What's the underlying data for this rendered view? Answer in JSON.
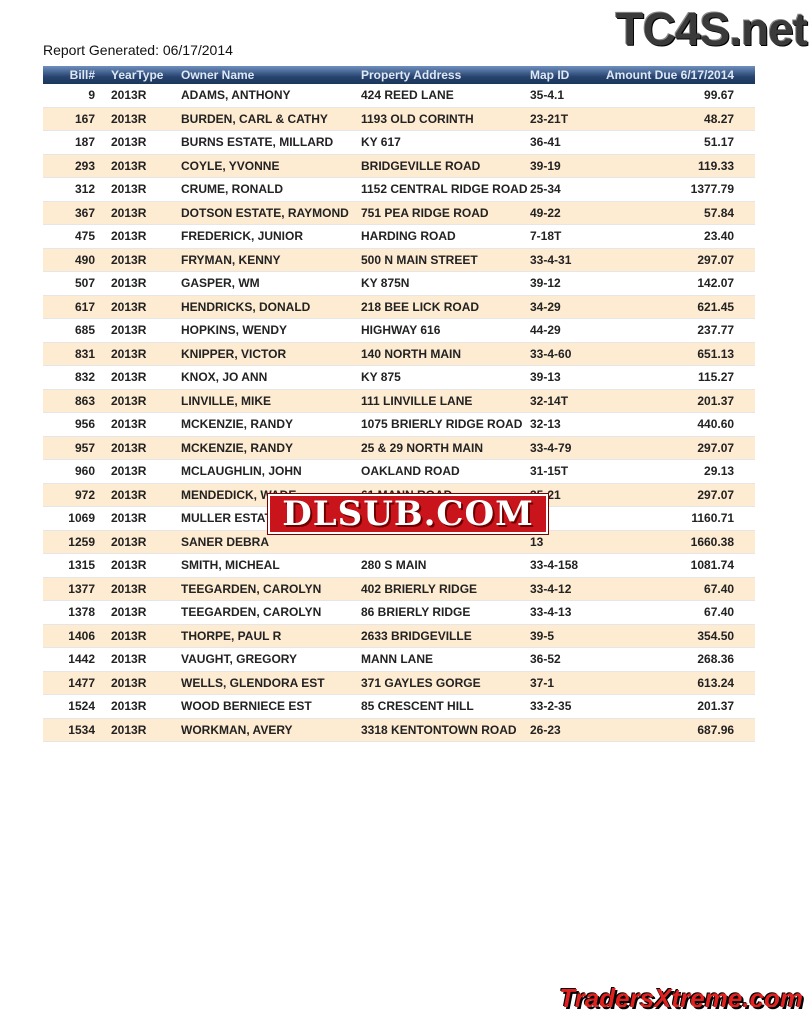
{
  "report_generated": "Report Generated: 06/17/2014",
  "logos": {
    "top": "TC4S.net",
    "middle": "DLSUB.COM",
    "bottom": "TradersXtreme.com"
  },
  "columns": [
    "Bill#",
    "YearType",
    "Owner Name",
    "Property Address",
    "Map ID",
    "Amount Due  6/17/2014"
  ],
  "rows": [
    [
      "9",
      "2013R",
      "ADAMS, ANTHONY",
      "424 REED LANE",
      "35-4.1",
      "99.67"
    ],
    [
      "167",
      "2013R",
      "BURDEN, CARL & CATHY",
      "1193 OLD CORINTH",
      "23-21T",
      "48.27"
    ],
    [
      "187",
      "2013R",
      "BURNS ESTATE, MILLARD",
      "KY 617",
      "36-41",
      "51.17"
    ],
    [
      "293",
      "2013R",
      "COYLE, YVONNE",
      "BRIDGEVILLE ROAD",
      "39-19",
      "119.33"
    ],
    [
      "312",
      "2013R",
      "CRUME, RONALD",
      "1152 CENTRAL RIDGE ROAD",
      "25-34",
      "1377.79"
    ],
    [
      "367",
      "2013R",
      "DOTSON ESTATE, RAYMOND",
      "751 PEA RIDGE ROAD",
      "49-22",
      "57.84"
    ],
    [
      "475",
      "2013R",
      "FREDERICK, JUNIOR",
      "HARDING ROAD",
      "7-18T",
      "23.40"
    ],
    [
      "490",
      "2013R",
      "FRYMAN, KENNY",
      "500 N MAIN STREET",
      "33-4-31",
      "297.07"
    ],
    [
      "507",
      "2013R",
      "GASPER, WM",
      "KY 875N",
      "39-12",
      "142.07"
    ],
    [
      "617",
      "2013R",
      "HENDRICKS, DONALD",
      "218 BEE LICK ROAD",
      "34-29",
      "621.45"
    ],
    [
      "685",
      "2013R",
      "HOPKINS, WENDY",
      "HIGHWAY 616",
      "44-29",
      "237.77"
    ],
    [
      "831",
      "2013R",
      "KNIPPER, VICTOR",
      "140 NORTH MAIN",
      "33-4-60",
      "651.13"
    ],
    [
      "832",
      "2013R",
      "KNOX, JO ANN",
      "KY 875",
      "39-13",
      "115.27"
    ],
    [
      "863",
      "2013R",
      "LINVILLE, MIKE",
      "111 LINVILLE LANE",
      "32-14T",
      "201.37"
    ],
    [
      "956",
      "2013R",
      "MCKENZIE, RANDY",
      "1075 BRIERLY RIDGE ROAD",
      "32-13",
      "440.60"
    ],
    [
      "957",
      "2013R",
      "MCKENZIE, RANDY",
      "25 & 29 NORTH MAIN",
      "33-4-79",
      "297.07"
    ],
    [
      "960",
      "2013R",
      "MCLAUGHLIN, JOHN",
      "OAKLAND ROAD",
      "31-15T",
      "29.13"
    ],
    [
      "972",
      "2013R",
      "MENDEDICK, WADE",
      "61 MANN ROAD",
      "35-21",
      "297.07"
    ],
    [
      "1069",
      "2013R",
      "MULLER ESTAT",
      "",
      "-8",
      "1160.71"
    ],
    [
      "1259",
      "2013R",
      "SANER DEBRA",
      "",
      "13",
      "1660.38"
    ],
    [
      "1315",
      "2013R",
      "SMITH, MICHEAL",
      "280 S MAIN",
      "33-4-158",
      "1081.74"
    ],
    [
      "1377",
      "2013R",
      "TEEGARDEN, CAROLYN",
      "402 BRIERLY RIDGE",
      "33-4-12",
      "67.40"
    ],
    [
      "1378",
      "2013R",
      "TEEGARDEN, CAROLYN",
      "86 BRIERLY RIDGE",
      "33-4-13",
      "67.40"
    ],
    [
      "1406",
      "2013R",
      "THORPE, PAUL R",
      "2633 BRIDGEVILLE",
      "39-5",
      "354.50"
    ],
    [
      "1442",
      "2013R",
      "VAUGHT, GREGORY",
      "MANN LANE",
      "36-52",
      "268.36"
    ],
    [
      "1477",
      "2013R",
      "WELLS, GLENDORA EST",
      "371 GAYLES GORGE",
      "37-1",
      "613.24"
    ],
    [
      "1524",
      "2013R",
      "WOOD BERNIECE EST",
      "85 CRESCENT HILL",
      "33-2-35",
      "201.37"
    ],
    [
      "1534",
      "2013R",
      "WORKMAN, AVERY",
      "3318 KENTONTOWN ROAD",
      "26-23",
      "687.96"
    ]
  ]
}
